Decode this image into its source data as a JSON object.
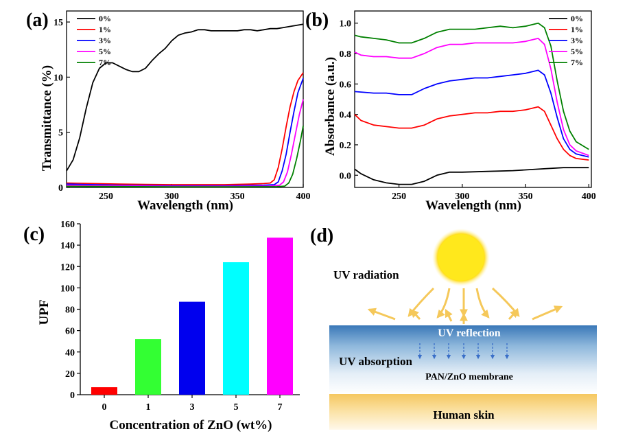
{
  "chart_data": [
    {
      "panel_label": "(a)",
      "type": "line",
      "xlabel": "Wavelength (nm)",
      "ylabel": "Transmittance (%)",
      "xlim": [
        220,
        400
      ],
      "ylim": [
        0,
        16
      ],
      "xticks": [
        250,
        300,
        350,
        400
      ],
      "yticks": [
        0,
        5,
        10,
        15
      ],
      "legend_position": "top-left",
      "series": [
        {
          "name": "0%",
          "color": "#000000",
          "points": [
            [
              220,
              1.5
            ],
            [
              225,
              2.5
            ],
            [
              230,
              4.5
            ],
            [
              235,
              7.2
            ],
            [
              240,
              9.5
            ],
            [
              245,
              10.8
            ],
            [
              250,
              11.3
            ],
            [
              255,
              11.3
            ],
            [
              260,
              11.0
            ],
            [
              265,
              10.7
            ],
            [
              270,
              10.5
            ],
            [
              275,
              10.5
            ],
            [
              280,
              10.8
            ],
            [
              285,
              11.5
            ],
            [
              290,
              12.1
            ],
            [
              295,
              12.6
            ],
            [
              300,
              13.3
            ],
            [
              305,
              13.8
            ],
            [
              310,
              14.0
            ],
            [
              315,
              14.1
            ],
            [
              320,
              14.3
            ],
            [
              325,
              14.3
            ],
            [
              330,
              14.2
            ],
            [
              340,
              14.2
            ],
            [
              350,
              14.2
            ],
            [
              355,
              14.3
            ],
            [
              360,
              14.3
            ],
            [
              365,
              14.2
            ],
            [
              370,
              14.3
            ],
            [
              375,
              14.4
            ],
            [
              380,
              14.4
            ],
            [
              385,
              14.5
            ],
            [
              390,
              14.6
            ],
            [
              395,
              14.7
            ],
            [
              400,
              14.8
            ]
          ]
        },
        {
          "name": "1%",
          "color": "#ff0000",
          "points": [
            [
              220,
              0.4
            ],
            [
              240,
              0.35
            ],
            [
              260,
              0.3
            ],
            [
              280,
              0.27
            ],
            [
              300,
              0.25
            ],
            [
              320,
              0.25
            ],
            [
              340,
              0.25
            ],
            [
              360,
              0.3
            ],
            [
              370,
              0.35
            ],
            [
              375,
              0.4
            ],
            [
              378,
              0.7
            ],
            [
              381,
              1.8
            ],
            [
              384,
              3.5
            ],
            [
              387,
              5.5
            ],
            [
              390,
              7.3
            ],
            [
              393,
              8.7
            ],
            [
              396,
              9.7
            ],
            [
              400,
              10.4
            ]
          ]
        },
        {
          "name": "3%",
          "color": "#0000ff",
          "points": [
            [
              220,
              0.3
            ],
            [
              260,
              0.2
            ],
            [
              300,
              0.15
            ],
            [
              340,
              0.15
            ],
            [
              370,
              0.2
            ],
            [
              378,
              0.25
            ],
            [
              381,
              0.5
            ],
            [
              384,
              1.5
            ],
            [
              387,
              3.0
            ],
            [
              390,
              5.0
            ],
            [
              393,
              6.9
            ],
            [
              396,
              8.6
            ],
            [
              400,
              9.9
            ]
          ]
        },
        {
          "name": "5%",
          "color": "#ff00ff",
          "points": [
            [
              220,
              0.2
            ],
            [
              260,
              0.15
            ],
            [
              300,
              0.1
            ],
            [
              340,
              0.1
            ],
            [
              375,
              0.12
            ],
            [
              382,
              0.2
            ],
            [
              385,
              0.5
            ],
            [
              388,
              1.4
            ],
            [
              391,
              3.0
            ],
            [
              394,
              4.8
            ],
            [
              397,
              6.6
            ],
            [
              400,
              8.0
            ]
          ]
        },
        {
          "name": "7%",
          "color": "#008000",
          "points": [
            [
              220,
              0.1
            ],
            [
              300,
              0.05
            ],
            [
              340,
              0.05
            ],
            [
              380,
              0.07
            ],
            [
              386,
              0.12
            ],
            [
              389,
              0.4
            ],
            [
              392,
              1.2
            ],
            [
              395,
              2.6
            ],
            [
              398,
              4.3
            ],
            [
              400,
              5.6
            ]
          ]
        }
      ]
    },
    {
      "panel_label": "(b)",
      "type": "line",
      "xlabel": "Wavelength (nm)",
      "ylabel": "Absorbance (a.u.)",
      "xlim": [
        215,
        402
      ],
      "ylim": [
        -0.08,
        1.08
      ],
      "xticks": [
        250,
        300,
        350,
        400
      ],
      "yticks": [
        0.0,
        0.2,
        0.4,
        0.6,
        0.8,
        1.0
      ],
      "legend_position": "top-right",
      "series": [
        {
          "name": "0%",
          "color": "#000000",
          "points": [
            [
              215,
              0.04
            ],
            [
              220,
              0.01
            ],
            [
              230,
              -0.03
            ],
            [
              240,
              -0.05
            ],
            [
              250,
              -0.06
            ],
            [
              260,
              -0.06
            ],
            [
              270,
              -0.04
            ],
            [
              280,
              0.0
            ],
            [
              290,
              0.02
            ],
            [
              300,
              0.02
            ],
            [
              320,
              0.025
            ],
            [
              340,
              0.03
            ],
            [
              360,
              0.04
            ],
            [
              380,
              0.05
            ],
            [
              400,
              0.05
            ]
          ]
        },
        {
          "name": "1%",
          "color": "#ff0000",
          "points": [
            [
              215,
              0.4
            ],
            [
              220,
              0.36
            ],
            [
              230,
              0.33
            ],
            [
              240,
              0.32
            ],
            [
              250,
              0.31
            ],
            [
              260,
              0.31
            ],
            [
              270,
              0.33
            ],
            [
              280,
              0.37
            ],
            [
              290,
              0.39
            ],
            [
              300,
              0.4
            ],
            [
              310,
              0.41
            ],
            [
              320,
              0.41
            ],
            [
              330,
              0.42
            ],
            [
              340,
              0.42
            ],
            [
              350,
              0.43
            ],
            [
              360,
              0.45
            ],
            [
              365,
              0.42
            ],
            [
              370,
              0.33
            ],
            [
              375,
              0.24
            ],
            [
              380,
              0.17
            ],
            [
              385,
              0.13
            ],
            [
              390,
              0.11
            ],
            [
              400,
              0.1
            ]
          ]
        },
        {
          "name": "3%",
          "color": "#0000ff",
          "points": [
            [
              215,
              0.55
            ],
            [
              230,
              0.54
            ],
            [
              240,
              0.54
            ],
            [
              250,
              0.53
            ],
            [
              260,
              0.53
            ],
            [
              270,
              0.57
            ],
            [
              280,
              0.6
            ],
            [
              290,
              0.62
            ],
            [
              300,
              0.63
            ],
            [
              310,
              0.64
            ],
            [
              320,
              0.64
            ],
            [
              330,
              0.65
            ],
            [
              340,
              0.66
            ],
            [
              350,
              0.67
            ],
            [
              360,
              0.69
            ],
            [
              365,
              0.66
            ],
            [
              370,
              0.54
            ],
            [
              375,
              0.38
            ],
            [
              380,
              0.24
            ],
            [
              385,
              0.17
            ],
            [
              390,
              0.14
            ],
            [
              400,
              0.12
            ]
          ]
        },
        {
          "name": "5%",
          "color": "#ff00ff",
          "points": [
            [
              215,
              0.81
            ],
            [
              220,
              0.79
            ],
            [
              230,
              0.78
            ],
            [
              240,
              0.78
            ],
            [
              250,
              0.77
            ],
            [
              260,
              0.77
            ],
            [
              270,
              0.8
            ],
            [
              280,
              0.84
            ],
            [
              290,
              0.86
            ],
            [
              300,
              0.86
            ],
            [
              310,
              0.87
            ],
            [
              320,
              0.87
            ],
            [
              330,
              0.87
            ],
            [
              340,
              0.87
            ],
            [
              350,
              0.88
            ],
            [
              360,
              0.9
            ],
            [
              365,
              0.86
            ],
            [
              370,
              0.7
            ],
            [
              375,
              0.48
            ],
            [
              380,
              0.3
            ],
            [
              385,
              0.2
            ],
            [
              390,
              0.16
            ],
            [
              400,
              0.13
            ]
          ]
        },
        {
          "name": "7%",
          "color": "#008000",
          "points": [
            [
              215,
              0.92
            ],
            [
              220,
              0.91
            ],
            [
              230,
              0.9
            ],
            [
              240,
              0.89
            ],
            [
              250,
              0.87
            ],
            [
              260,
              0.87
            ],
            [
              270,
              0.9
            ],
            [
              280,
              0.94
            ],
            [
              290,
              0.96
            ],
            [
              300,
              0.96
            ],
            [
              310,
              0.96
            ],
            [
              320,
              0.97
            ],
            [
              330,
              0.98
            ],
            [
              340,
              0.97
            ],
            [
              350,
              0.98
            ],
            [
              360,
              1.0
            ],
            [
              365,
              0.97
            ],
            [
              370,
              0.85
            ],
            [
              375,
              0.62
            ],
            [
              380,
              0.42
            ],
            [
              385,
              0.29
            ],
            [
              390,
              0.22
            ],
            [
              400,
              0.17
            ]
          ]
        }
      ]
    },
    {
      "panel_label": "(c)",
      "type": "bar",
      "xlabel": "Concentration of ZnO (wt%)",
      "ylabel": "UPF",
      "ylim": [
        0,
        160
      ],
      "yticks": [
        0,
        20,
        40,
        60,
        80,
        100,
        120,
        140,
        160
      ],
      "categories": [
        "0",
        "1",
        "3",
        "5",
        "7"
      ],
      "values": [
        7,
        52,
        87,
        124,
        147
      ],
      "colors": [
        "#ff0000",
        "#33ff33",
        "#0000ee",
        "#00ffff",
        "#ff00ff"
      ]
    }
  ],
  "diagram": {
    "panel_label": "(d)",
    "uv_radiation": "UV radiation",
    "uv_reflection": "UV reflection",
    "uv_absorption": "UV absorption",
    "membrane": "PAN/ZnO membrane",
    "skin": "Human skin"
  }
}
